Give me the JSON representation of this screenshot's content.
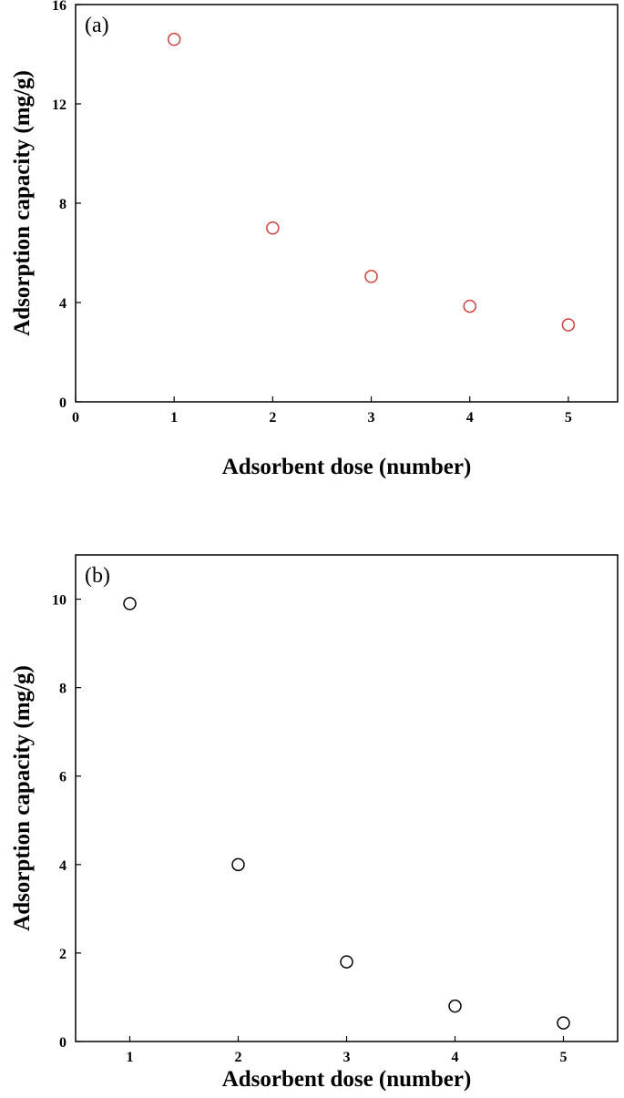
{
  "chart_data": [
    {
      "type": "scatter",
      "panel_label": "(a)",
      "xlabel": "Adsorbent dose (number)",
      "ylabel": "Adsorption capacity (mg/g)",
      "xlim": [
        0,
        5.5
      ],
      "ylim": [
        0,
        16
      ],
      "xticks": [
        "0",
        "1",
        "2",
        "3",
        "4",
        "5"
      ],
      "yticks": [
        "0",
        "4",
        "8",
        "12",
        "16"
      ],
      "marker": "open-circle",
      "marker_color": "#d0413a",
      "grid": false,
      "x": [
        1,
        2,
        3,
        4,
        5
      ],
      "y": [
        14.6,
        7.0,
        5.05,
        3.85,
        3.1
      ]
    },
    {
      "type": "scatter",
      "panel_label": "(b)",
      "xlabel": "Adsorbent dose (number)",
      "ylabel": "Adsorption capacity (mg/g)",
      "xlim": [
        0.5,
        5.5
      ],
      "ylim": [
        0,
        11
      ],
      "xticks": [
        "1",
        "2",
        "3",
        "4",
        "5"
      ],
      "yticks": [
        "0",
        "2",
        "4",
        "6",
        "8",
        "10"
      ],
      "marker": "open-circle",
      "marker_color": "#000000",
      "grid": false,
      "x": [
        1,
        2,
        3,
        4,
        5
      ],
      "y": [
        9.9,
        4.0,
        1.8,
        0.8,
        0.42
      ]
    }
  ]
}
